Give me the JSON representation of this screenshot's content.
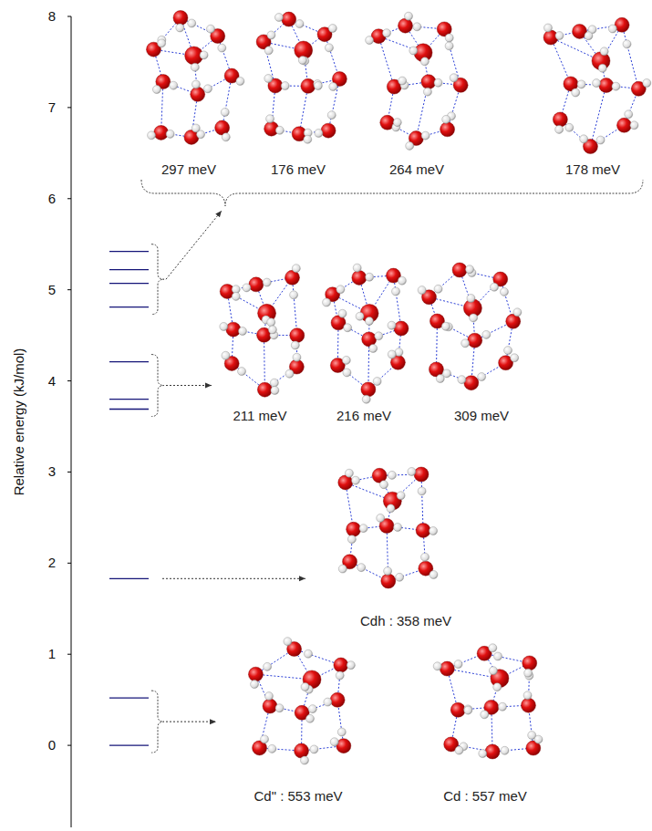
{
  "chart_data": {
    "type": "energy_levels",
    "y_label": "Relative energy (kJ/mol)",
    "ylim": [
      -0.9,
      8
    ],
    "yticks": [
      0,
      1,
      2,
      3,
      4,
      5,
      6,
      7,
      8
    ],
    "groups": [
      {
        "levels": [
          0,
          0.52
        ],
        "structures": [
          "Cd\" : 553 meV",
          "Cd : 557 meV"
        ]
      },
      {
        "levels": [
          1.83
        ],
        "structures": [
          "Cdh : 358 meV"
        ]
      },
      {
        "levels": [
          3.69,
          3.8,
          4.21
        ],
        "structures": [
          "211 meV",
          "216 meV",
          "309 meV"
        ]
      },
      {
        "levels": [
          4.81,
          5.07,
          5.22,
          5.42
        ],
        "structures": [
          "297 meV",
          "176 meV",
          "264 meV",
          "178 meV"
        ]
      }
    ]
  }
}
